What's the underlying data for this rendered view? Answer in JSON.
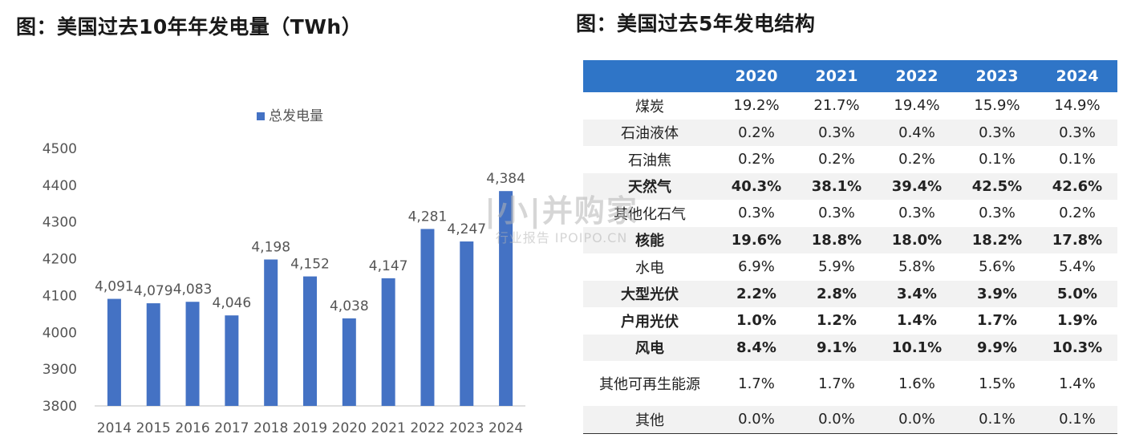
{
  "left_title": "图：美国过去10年年发电量（TWh）",
  "right_title": "图：美国过去5年发电结构",
  "watermark": {
    "main": "|小|并购家",
    "sub": "行业报告 IPOIPO.CN"
  },
  "chart_data": {
    "type": "bar",
    "title": "",
    "legend": [
      "总发电量"
    ],
    "legend_position": "top-center",
    "categories": [
      "2014",
      "2015",
      "2016",
      "2017",
      "2018",
      "2019",
      "2020",
      "2021",
      "2022",
      "2023",
      "2024"
    ],
    "series": [
      {
        "name": "总发电量",
        "values": [
          4091,
          4079,
          4083,
          4046,
          4198,
          4152,
          4038,
          4147,
          4281,
          4247,
          4384
        ]
      }
    ],
    "data_labels": [
      "4,091",
      "4,079",
      "4,083",
      "4,046",
      "4,198",
      "4,152",
      "4,038",
      "4,147",
      "4,281",
      "4,247",
      "4,384"
    ],
    "yticks": [
      "3800",
      "3900",
      "4000",
      "4100",
      "4200",
      "4300",
      "4400",
      "4500"
    ],
    "ylim": [
      3800,
      4500
    ],
    "grid": false,
    "bar_color": "#4472c4"
  },
  "table": {
    "header_color": "#2f75c7",
    "columns": [
      "",
      "2020",
      "2021",
      "2022",
      "2023",
      "2024"
    ],
    "rows": [
      {
        "cells": [
          "煤炭",
          "19.2%",
          "21.7%",
          "19.4%",
          "15.9%",
          "14.9%"
        ],
        "bold": false
      },
      {
        "cells": [
          "石油液体",
          "0.2%",
          "0.3%",
          "0.4%",
          "0.3%",
          "0.3%"
        ],
        "bold": false
      },
      {
        "cells": [
          "石油焦",
          "0.2%",
          "0.2%",
          "0.2%",
          "0.1%",
          "0.1%"
        ],
        "bold": false
      },
      {
        "cells": [
          "天然气",
          "40.3%",
          "38.1%",
          "39.4%",
          "42.5%",
          "42.6%"
        ],
        "bold": true
      },
      {
        "cells": [
          "其他化石气",
          "0.3%",
          "0.3%",
          "0.3%",
          "0.3%",
          "0.2%"
        ],
        "bold": false
      },
      {
        "cells": [
          "核能",
          "19.6%",
          "18.8%",
          "18.0%",
          "18.2%",
          "17.8%"
        ],
        "bold": true
      },
      {
        "cells": [
          "水电",
          "6.9%",
          "5.9%",
          "5.8%",
          "5.6%",
          "5.4%"
        ],
        "bold": false
      },
      {
        "cells": [
          "大型光伏",
          "2.2%",
          "2.8%",
          "3.4%",
          "3.9%",
          "5.0%"
        ],
        "bold": true
      },
      {
        "cells": [
          "户用光伏",
          "1.0%",
          "1.2%",
          "1.4%",
          "1.7%",
          "1.9%"
        ],
        "bold": true
      },
      {
        "cells": [
          "风电",
          "8.4%",
          "9.1%",
          "10.1%",
          "9.9%",
          "10.3%"
        ],
        "bold": true
      },
      {
        "cells": [
          "其他可再生能源",
          "1.7%",
          "1.7%",
          "1.6%",
          "1.5%",
          "1.4%"
        ],
        "bold": false,
        "tall": true
      },
      {
        "cells": [
          "其他",
          "0.0%",
          "0.0%",
          "0.0%",
          "0.1%",
          "0.1%"
        ],
        "bold": false
      }
    ]
  }
}
